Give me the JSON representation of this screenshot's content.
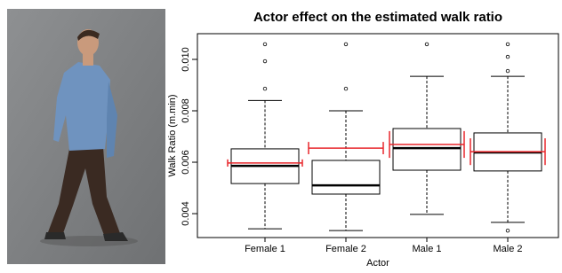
{
  "chart_data": {
    "type": "boxplot",
    "title": "Actor effect on the estimated walk ratio",
    "x_label": "Actor",
    "y_label": "Walk Ratio (m.min)",
    "categories": [
      "Female 1",
      "Female 2",
      "Male 1",
      "Male 2"
    ],
    "boxes": [
      {
        "whisker_low": 0.00341,
        "q1": 0.00517,
        "median": 0.00586,
        "q3": 0.00652,
        "whisker_high": 0.0084,
        "outliers": [
          0.01059,
          0.00993,
          0.00886
        ]
      },
      {
        "whisker_low": 0.00334,
        "q1": 0.00476,
        "median": 0.0051,
        "q3": 0.00607,
        "whisker_high": 0.008,
        "outliers": [
          0.01059,
          0.00886
        ]
      },
      {
        "whisker_low": 0.00397,
        "q1": 0.00569,
        "median": 0.00655,
        "q3": 0.00731,
        "whisker_high": 0.00934,
        "outliers": [
          0.01059
        ]
      },
      {
        "whisker_low": 0.00366,
        "q1": 0.00566,
        "median": 0.00638,
        "q3": 0.00714,
        "whisker_high": 0.00934,
        "outliers": [
          0.01059,
          0.0101,
          0.00955,
          0.00334
        ]
      }
    ],
    "means": [
      0.00597,
      0.00655,
      0.00669,
      0.00641
    ],
    "mean_errors": [
      0.00014,
      0.00024,
      0.00052,
      0.00052
    ],
    "box_color": "#000000",
    "mean_color": "#e8262b",
    "ylim": [
      0.00307,
      0.011
    ],
    "yticks": [
      0.004,
      0.006,
      0.008,
      {
        "value": 0.01,
        "label": "0.010"
      }
    ]
  }
}
